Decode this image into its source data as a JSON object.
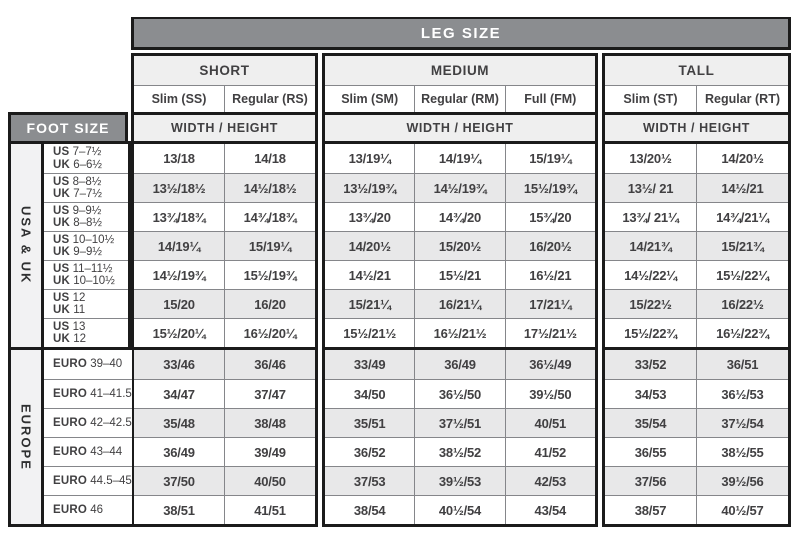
{
  "colors": {
    "header_bg": "#8b8d90",
    "header_text": "#ffffff",
    "subheader_bg": "#efefef",
    "stripe": "#e8e8e9",
    "border_dark": "#1b1b1b",
    "border_thin": "#85868a",
    "text": "#414042"
  },
  "table": {
    "leg_size_title": "LEG SIZE",
    "foot_size_title": "FOOT SIZE",
    "width_height_label": "WIDTH / HEIGHT",
    "groups": [
      {
        "name": "SHORT",
        "columns": [
          "Slim (SS)",
          "Regular (RS)"
        ]
      },
      {
        "name": "MEDIUM",
        "columns": [
          "Slim (SM)",
          "Regular (RM)",
          "Full (FM)"
        ]
      },
      {
        "name": "TALL",
        "columns": [
          "Slim (ST)",
          "Regular (RT)"
        ]
      }
    ],
    "sections": [
      {
        "region_label": "USA & UK",
        "rows": [
          {
            "size": [
              {
                "prefix": "US",
                "value": "7–7½"
              },
              {
                "prefix": "UK",
                "value": "6–6½"
              }
            ],
            "values": [
              [
                "13/18",
                "14/18"
              ],
              [
                "13/19¼",
                "14/19¼",
                "15/19¼"
              ],
              [
                "13/20½",
                "14/20½"
              ]
            ]
          },
          {
            "size": [
              {
                "prefix": "US",
                "value": "8–8½"
              },
              {
                "prefix": "UK",
                "value": "7–7½"
              }
            ],
            "values": [
              [
                "13½/18½",
                "14½/18½"
              ],
              [
                "13½/19¾",
                "14½/19¾",
                "15½/19¾"
              ],
              [
                "13½/ 21",
                "14½/21"
              ]
            ]
          },
          {
            "size": [
              {
                "prefix": "US",
                "value": "9–9½"
              },
              {
                "prefix": "UK",
                "value": "8–8½"
              }
            ],
            "values": [
              [
                "13¾/18¾",
                "14¾/18¾"
              ],
              [
                "13¾/20",
                "14¾/20",
                "15¾/20"
              ],
              [
                "13¾/ 21¼",
                "14¾/21¼"
              ]
            ]
          },
          {
            "size": [
              {
                "prefix": "US",
                "value": "10–10½"
              },
              {
                "prefix": "UK",
                "value": "9–9½"
              }
            ],
            "values": [
              [
                "14/19¼",
                "15/19¼"
              ],
              [
                "14/20½",
                "15/20½",
                "16/20½"
              ],
              [
                "14/21¾",
                "15/21¾"
              ]
            ]
          },
          {
            "size": [
              {
                "prefix": "US",
                "value": "11–11½"
              },
              {
                "prefix": "UK",
                "value": "10–10½"
              }
            ],
            "values": [
              [
                "14½/19¾",
                "15½/19¾"
              ],
              [
                "14½/21",
                "15½/21",
                "16½/21"
              ],
              [
                "14½/22¼",
                "15½/22¼"
              ]
            ]
          },
          {
            "size": [
              {
                "prefix": "US",
                "value": "12"
              },
              {
                "prefix": "UK",
                "value": "11"
              }
            ],
            "values": [
              [
                "15/20",
                "16/20"
              ],
              [
                "15/21¼",
                "16/21¼",
                "17/21¼"
              ],
              [
                "15/22½",
                "16/22½"
              ]
            ]
          },
          {
            "size": [
              {
                "prefix": "US",
                "value": "13"
              },
              {
                "prefix": "UK",
                "value": "12"
              }
            ],
            "values": [
              [
                "15½/20¼",
                "16½/20¼"
              ],
              [
                "15½/21½",
                "16½/21½",
                "17½/21½"
              ],
              [
                "15½/22¾",
                "16½/22¾"
              ]
            ]
          }
        ]
      },
      {
        "region_label": "EUROPE",
        "rows": [
          {
            "size": [
              {
                "prefix": "EURO",
                "value": "39–40"
              }
            ],
            "values": [
              [
                "33/46",
                "36/46"
              ],
              [
                "33/49",
                "36/49",
                "36½/49"
              ],
              [
                "33/52",
                "36/51"
              ]
            ]
          },
          {
            "size": [
              {
                "prefix": "EURO",
                "value": "41–41.5"
              }
            ],
            "values": [
              [
                "34/47",
                "37/47"
              ],
              [
                "34/50",
                "36½/50",
                "39½/50"
              ],
              [
                "34/53",
                "36½/53"
              ]
            ]
          },
          {
            "size": [
              {
                "prefix": "EURO",
                "value": "42–42.5"
              }
            ],
            "values": [
              [
                "35/48",
                "38/48"
              ],
              [
                "35/51",
                "37½/51",
                "40/51"
              ],
              [
                "35/54",
                "37½/54"
              ]
            ]
          },
          {
            "size": [
              {
                "prefix": "EURO",
                "value": "43–44"
              }
            ],
            "values": [
              [
                "36/49",
                "39/49"
              ],
              [
                "36/52",
                "38½/52",
                "41/52"
              ],
              [
                "36/55",
                "38½/55"
              ]
            ]
          },
          {
            "size": [
              {
                "prefix": "EURO",
                "value": "44.5–45"
              }
            ],
            "values": [
              [
                "37/50",
                "40/50"
              ],
              [
                "37/53",
                "39½/53",
                "42/53"
              ],
              [
                "37/56",
                "39½/56"
              ]
            ]
          },
          {
            "size": [
              {
                "prefix": "EURO",
                "value": "46"
              }
            ],
            "values": [
              [
                "38/51",
                "41/51"
              ],
              [
                "38/54",
                "40½/54",
                "43/54"
              ],
              [
                "38/57",
                "40½/57"
              ]
            ]
          }
        ]
      }
    ]
  }
}
